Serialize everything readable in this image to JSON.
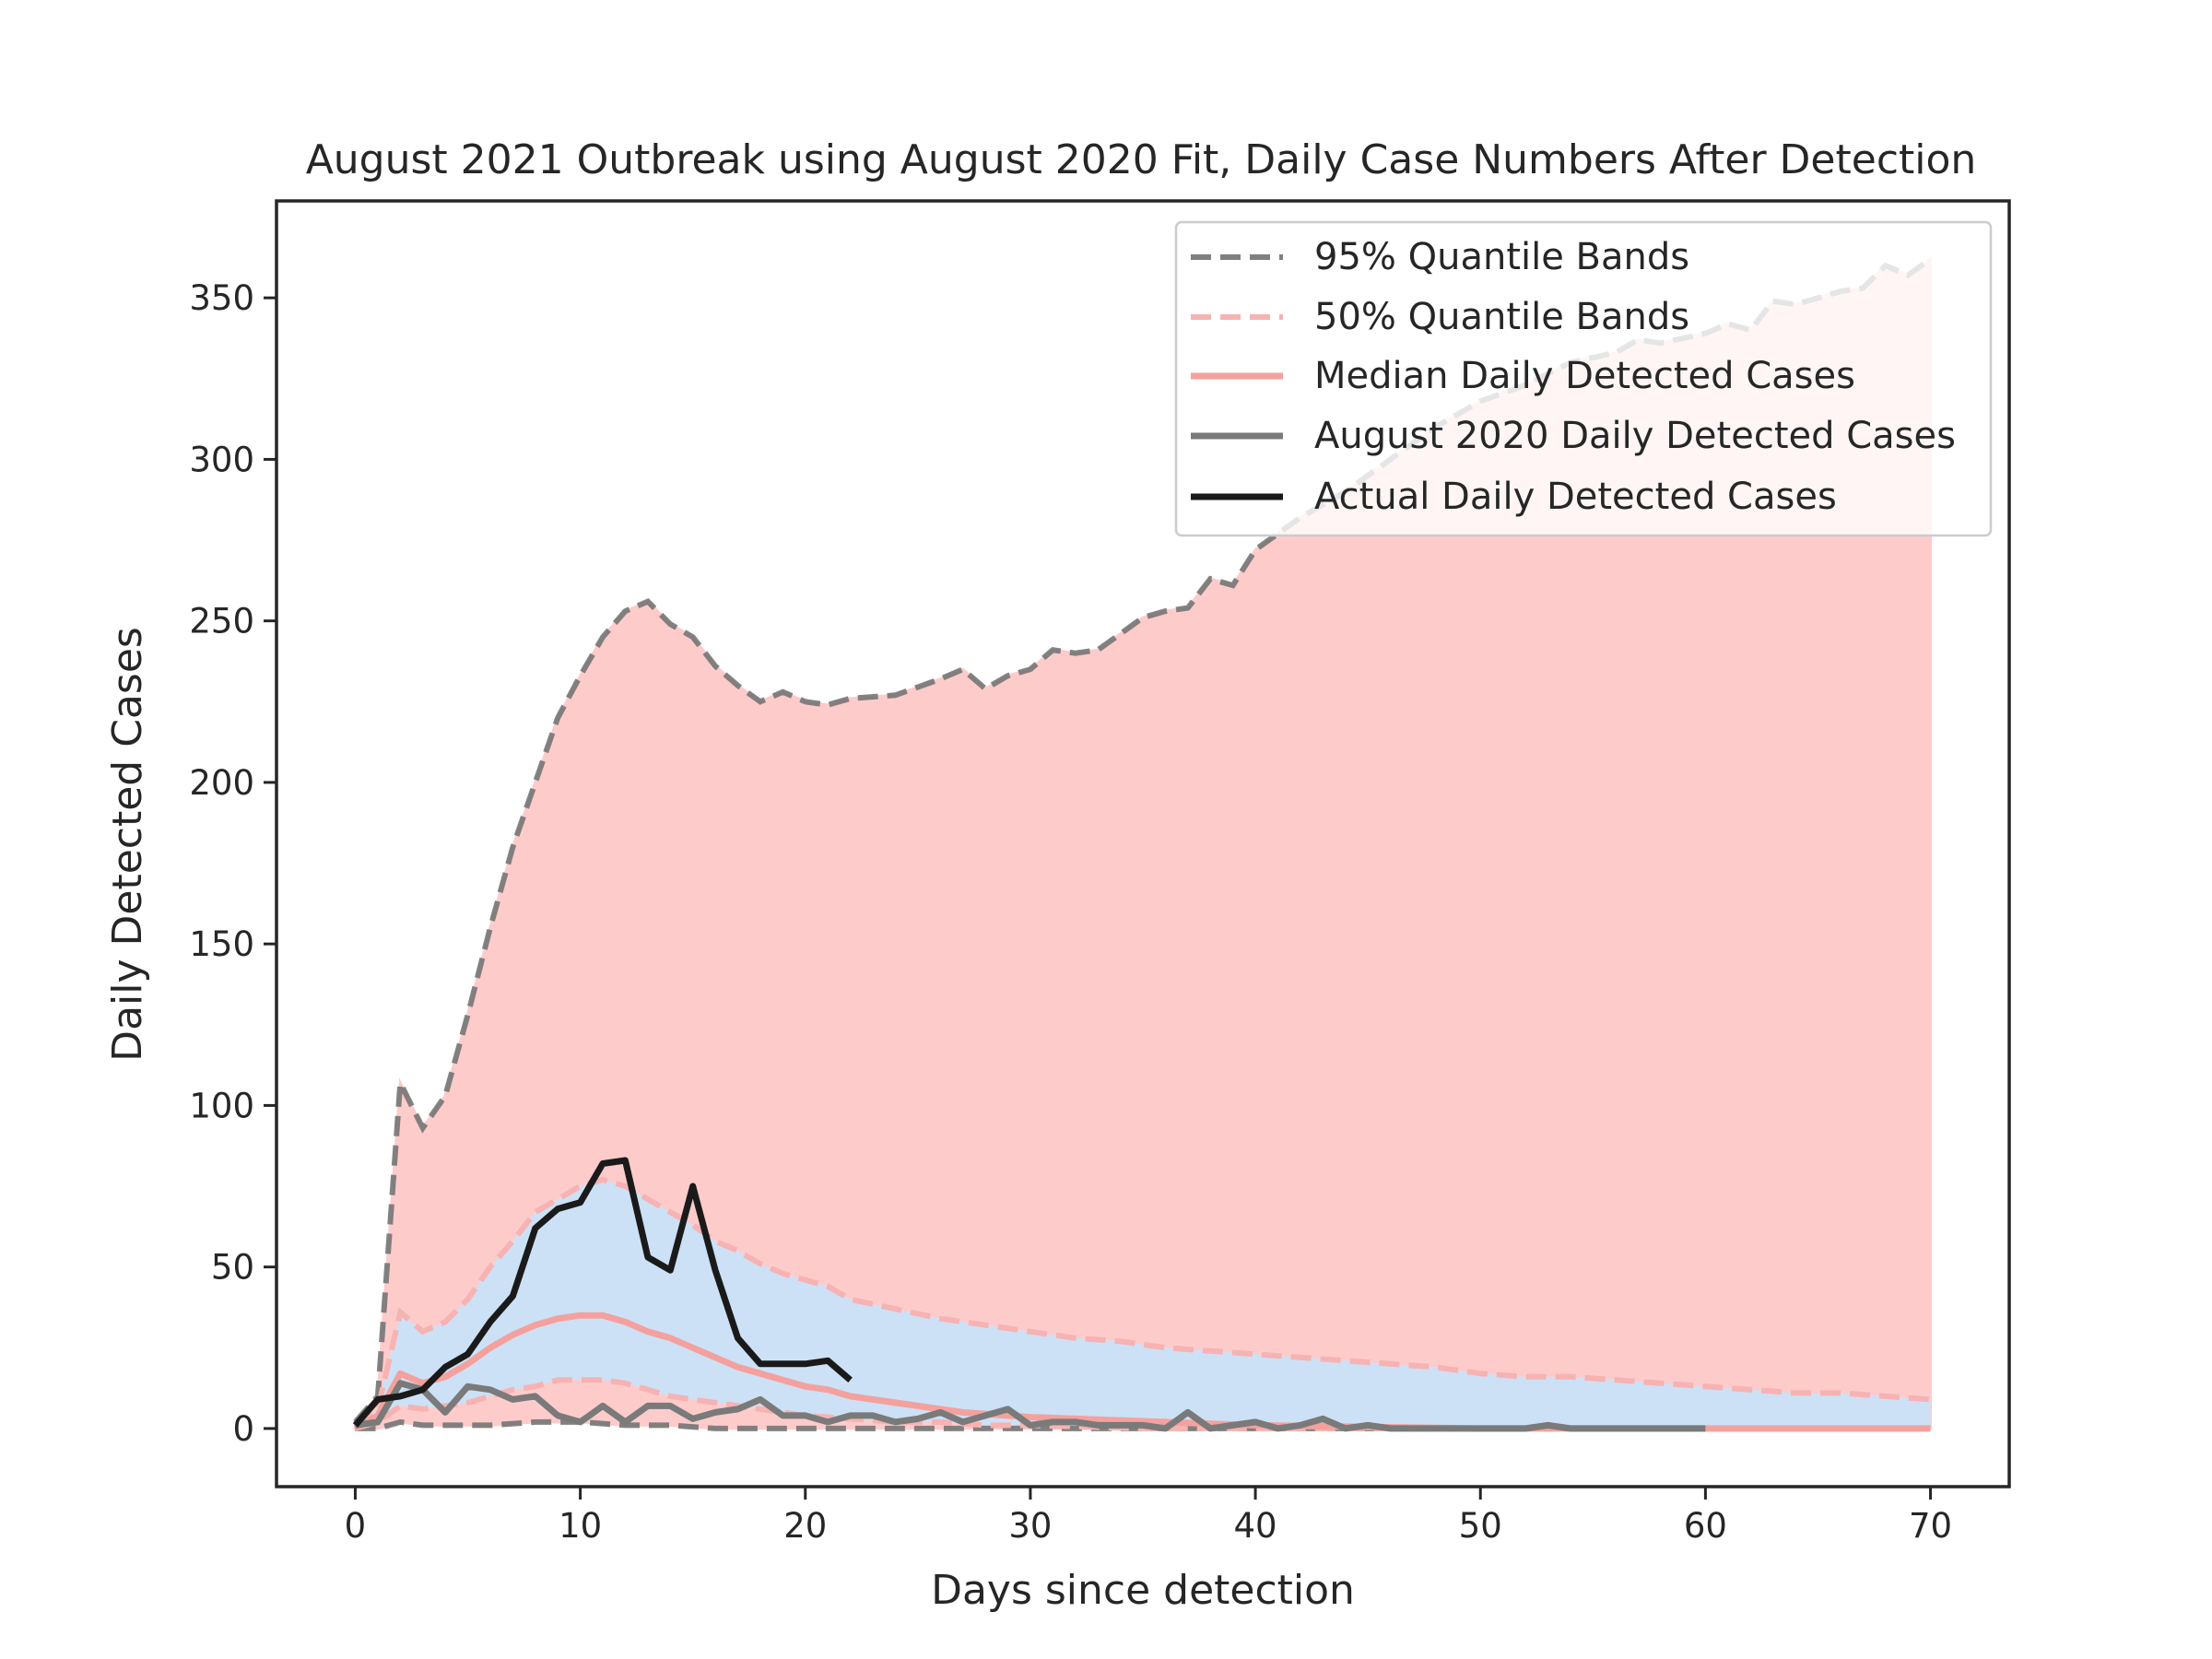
{
  "chart_data": {
    "type": "line",
    "title": "August 2021 Outbreak using August 2020 Fit, Daily Case Numbers After Detection",
    "xlabel": "Days since detection",
    "ylabel": "Daily Detected Cases",
    "xlim": [
      -3.5,
      73.5
    ],
    "ylim": [
      -18,
      380
    ],
    "xticks": [
      0,
      10,
      20,
      30,
      40,
      50,
      60,
      70
    ],
    "yticks": [
      0,
      50,
      100,
      150,
      200,
      250,
      300,
      350
    ],
    "grid": false,
    "legend_position": "top-right",
    "legend": [
      {
        "label": "95% Quantile Bands",
        "style": "dashed",
        "color": "#808080"
      },
      {
        "label": "50% Quantile Bands",
        "style": "dashed",
        "color": "#f7b2b2"
      },
      {
        "label": "Median Daily Detected Cases",
        "style": "solid",
        "color": "#f4a19e"
      },
      {
        "label": "August 2020 Daily Detected Cases",
        "style": "solid",
        "color": "#7a7a7a"
      },
      {
        "label": "Actual Daily Detected Cases",
        "style": "solid",
        "color": "#1a1a1a"
      }
    ],
    "colors": {
      "band95_fill": "#fecbcb",
      "band50_fill": "#cce1f6",
      "band95_line": "#757575",
      "band50_line": "#f7b2b2",
      "median": "#f4a19e",
      "aug2020": "#7a7a7a",
      "actual": "#1a1a1a"
    },
    "series": {
      "q95_upper": {
        "x": [
          0,
          1,
          2,
          3,
          4,
          5,
          6,
          7,
          8,
          9,
          10,
          11,
          12,
          13,
          14,
          15,
          16,
          17,
          18,
          19,
          20,
          21,
          22,
          24,
          26,
          27,
          28,
          29,
          30,
          31,
          32,
          33,
          34,
          35,
          36,
          37,
          38,
          39,
          40,
          42,
          44,
          46,
          48,
          50,
          52,
          54,
          56,
          57,
          58,
          60,
          61,
          62,
          63,
          64,
          65,
          66,
          67,
          68,
          69,
          70
        ],
        "y": [
          2,
          10,
          107,
          93,
          103,
          128,
          155,
          180,
          200,
          220,
          233,
          245,
          253,
          256,
          249,
          245,
          236,
          230,
          225,
          228,
          225,
          224,
          226,
          227,
          232,
          235,
          229,
          233,
          235,
          241,
          240,
          241,
          246,
          251,
          253,
          254,
          263,
          261,
          272,
          282,
          290,
          300,
          310,
          318,
          323,
          330,
          333,
          337,
          336,
          339,
          342,
          340,
          349,
          348,
          350,
          352,
          353,
          360,
          357,
          362
        ]
      },
      "q95_lower": {
        "x": [
          0,
          1,
          2,
          3,
          4,
          6,
          8,
          10,
          12,
          14,
          16,
          18,
          20,
          25,
          30,
          40,
          50,
          60,
          70
        ],
        "y": [
          0,
          0,
          2,
          1,
          1,
          1,
          2,
          2,
          1,
          1,
          0,
          0,
          0,
          0,
          0,
          0,
          0,
          0,
          0
        ]
      },
      "q50_upper": {
        "x": [
          0,
          1,
          2,
          3,
          4,
          5,
          6,
          7,
          8,
          9,
          10,
          11,
          12,
          13,
          14,
          15,
          16,
          17,
          18,
          19,
          20,
          21,
          22,
          24,
          26,
          28,
          30,
          32,
          34,
          36,
          38,
          40,
          42,
          44,
          46,
          48,
          50,
          52,
          54,
          56,
          58,
          60,
          62,
          64,
          66,
          68,
          70
        ],
        "y": [
          1,
          6,
          36,
          30,
          33,
          40,
          50,
          58,
          67,
          71,
          75,
          77,
          75,
          71,
          67,
          63,
          58,
          55,
          51,
          48,
          46,
          44,
          40,
          37,
          34,
          32,
          30,
          28,
          27,
          25,
          24,
          23,
          22,
          21,
          20,
          19,
          17,
          16,
          16,
          15,
          14,
          13,
          12,
          11,
          11,
          10,
          9
        ]
      },
      "q50_lower": {
        "x": [
          0,
          1,
          2,
          3,
          4,
          5,
          6,
          7,
          8,
          9,
          10,
          11,
          12,
          13,
          14,
          15,
          16,
          17,
          18,
          19,
          20,
          22,
          24,
          26,
          28,
          30,
          35,
          40,
          50,
          60,
          70
        ],
        "y": [
          0,
          2,
          7,
          6,
          7,
          8,
          10,
          12,
          13,
          15,
          15,
          15,
          14,
          12,
          10,
          9,
          8,
          7,
          6,
          5,
          4,
          3,
          2,
          2,
          1,
          1,
          0,
          0,
          0,
          0,
          0
        ]
      },
      "median": {
        "x": [
          0,
          1,
          2,
          3,
          4,
          5,
          6,
          7,
          8,
          9,
          10,
          11,
          12,
          13,
          14,
          15,
          16,
          17,
          18,
          19,
          20,
          21,
          22,
          23,
          24,
          25,
          26,
          27,
          28,
          29,
          30,
          32,
          34,
          36,
          38,
          40,
          45,
          50,
          55,
          60,
          65,
          70
        ],
        "y": [
          0,
          4,
          17,
          14,
          16,
          20,
          25,
          29,
          32,
          34,
          35,
          35,
          33,
          30,
          28,
          25,
          22,
          19,
          17,
          15,
          13,
          12,
          10,
          9,
          8,
          7,
          6,
          5,
          4.5,
          4,
          3.5,
          3,
          2.5,
          2,
          1.5,
          1,
          0.5,
          0,
          0,
          0,
          0,
          0
        ]
      },
      "aug2020": {
        "x": [
          0,
          1,
          2,
          3,
          4,
          5,
          6,
          7,
          8,
          9,
          10,
          11,
          12,
          13,
          14,
          15,
          16,
          17,
          18,
          19,
          20,
          21,
          22,
          23,
          24,
          25,
          26,
          27,
          28,
          29,
          30,
          31,
          32,
          33,
          34,
          35,
          36,
          37,
          38,
          39,
          40,
          41,
          42,
          43,
          44,
          45,
          46,
          47,
          48,
          49,
          50,
          51,
          52,
          53,
          54,
          55,
          56,
          57,
          58,
          59,
          60
        ],
        "y": [
          1,
          2,
          14,
          12,
          5,
          13,
          12,
          9,
          10,
          4,
          2,
          7,
          2,
          7,
          7,
          3,
          5,
          6,
          9,
          4,
          4,
          2,
          4,
          4,
          2,
          3,
          5,
          2,
          4,
          6,
          1,
          2,
          2,
          1,
          1,
          1,
          0,
          5,
          0,
          1,
          2,
          0,
          1,
          3,
          0,
          1,
          0,
          0,
          0,
          0,
          0,
          0,
          0,
          1,
          0,
          0,
          0,
          0,
          0,
          0,
          0
        ]
      },
      "actual": {
        "x": [
          0,
          1,
          2,
          3,
          4,
          5,
          6,
          7,
          8,
          9,
          10,
          11,
          12,
          13,
          14,
          15,
          16,
          17,
          18,
          19,
          20,
          21,
          22
        ],
        "y": [
          1,
          9,
          10,
          12,
          19,
          23,
          33,
          41,
          62,
          68,
          70,
          82,
          83,
          53,
          49,
          75,
          49,
          28,
          20,
          20,
          20,
          21,
          15
        ]
      }
    }
  }
}
